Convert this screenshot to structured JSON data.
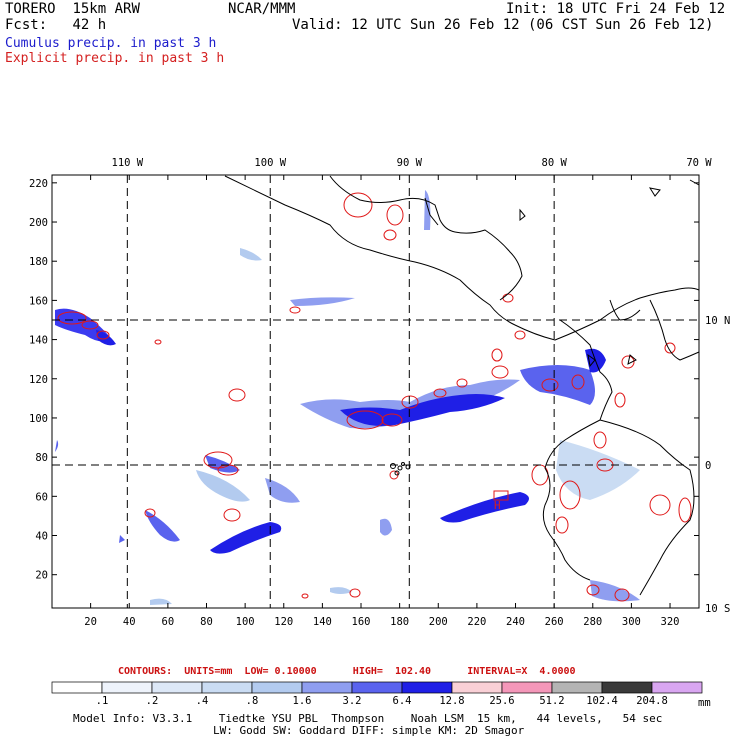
{
  "header": {
    "model": "TORERO",
    "resolution": "15km ARW",
    "center": "NCAR/MMM",
    "init": "Init: 18 UTC Fri 24 Feb 12",
    "fcst_label": "Fcst:",
    "fcst_value": "42 h",
    "valid": "Valid: 12 UTC Sun 26 Feb 12 (06 CST Sun 26 Feb 12)",
    "cumulus": "Cumulus precip. in past 3 h",
    "explicit": "Explicit precip. in past 3 h"
  },
  "map": {
    "lon_labels": [
      "110 W",
      "100 W",
      "90 W",
      "80 W",
      "70 W"
    ],
    "lat_labels": [
      "10 N",
      "0",
      "10 S"
    ],
    "x_ticks": [
      "20",
      "40",
      "60",
      "80",
      "100",
      "120",
      "140",
      "160",
      "180",
      "200",
      "220",
      "240",
      "260",
      "280",
      "300",
      "320"
    ],
    "y_ticks": [
      "220",
      "200",
      "180",
      "160",
      "140",
      "120",
      "100",
      "80",
      "60",
      "40",
      "20"
    ],
    "grid_x_range": [
      0,
      335
    ],
    "grid_y_range": [
      3,
      224
    ],
    "meridians_x": [
      39,
      113,
      185,
      260
    ],
    "parallels_y": [
      150,
      76
    ],
    "high_marker": "H"
  },
  "legend": {
    "contours_text": "CONTOURS:  UNITS=mm  LOW= 0.10000      HIGH=  102.40      INTERVAL=X  4.0000",
    "values": [
      ".1",
      ".2",
      ".4",
      ".8",
      "1.6",
      "3.2",
      "6.4",
      "12.8",
      "25.6",
      "51.2",
      "102.4",
      "204.8"
    ],
    "units": "mm",
    "colors": [
      "#ffffff",
      "#eef3fb",
      "#dde8f7",
      "#cadcf3",
      "#b3cbef",
      "#8f9ef0",
      "#5a63ee",
      "#1f1fe6",
      "#f9d0d6",
      "#f497b9",
      "#b4b4b4",
      "#3a3a3a",
      "#d9a6f1"
    ]
  },
  "footer": {
    "line1": "Model Info: V3.3.1    Tiedtke YSU PBL  Thompson    Noah LSM  15 km,   44 levels,   54 sec",
    "line2": "LW: Godd SW: Goddard DIFF: simple KM: 2D Smagor"
  }
}
